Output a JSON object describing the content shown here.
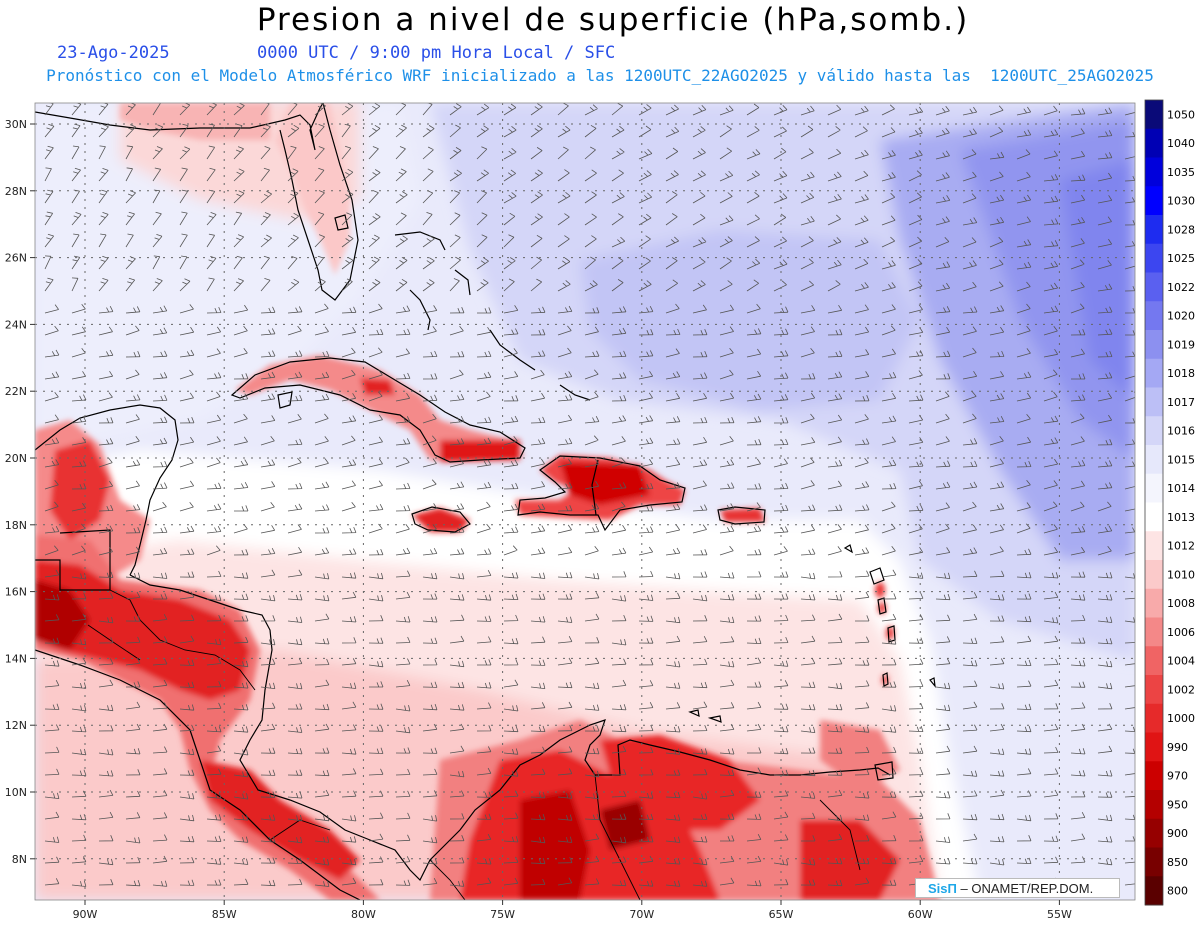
{
  "title": "Presion a nivel de superficie (hPa,somb.)",
  "date": "23-Ago-2025",
  "time_info": "0000 UTC / 9:00 pm Hora Local / SFC",
  "model_info": "Pronóstico con el Modelo Atmosférico WRF inicializado a las 1200UTC_22AGO2025 y válido hasta las  1200UTC_25AGO2025",
  "credit": {
    "logo": "SisΠ",
    "text": " – ONAMET/REP.DOM."
  },
  "lat_labels": [
    "30N",
    "28N",
    "26N",
    "24N",
    "22N",
    "20N",
    "18N",
    "16N",
    "14N",
    "12N",
    "10N",
    "8N"
  ],
  "lon_labels": [
    "90W",
    "85W",
    "80W",
    "75W",
    "70W",
    "65W",
    "60W",
    "55W"
  ],
  "colorbar": {
    "labels": [
      "1050",
      "1040",
      "1035",
      "1030",
      "1028",
      "1025",
      "1022",
      "1020",
      "1019",
      "1018",
      "1017",
      "1016",
      "1015",
      "1014",
      "1013",
      "1012",
      "1010",
      "1008",
      "1006",
      "1004",
      "1002",
      "1000",
      "990",
      "970",
      "950",
      "900",
      "850",
      "800"
    ],
    "colors": [
      "#0a0a78",
      "#0000b4",
      "#0000dc",
      "#0000ff",
      "#1e2cf0",
      "#3c46f0",
      "#5a60f0",
      "#7478f0",
      "#8c90f0",
      "#a4a8f4",
      "#bcbff6",
      "#d4d6f8",
      "#e6e8fb",
      "#f4f5fd",
      "#ffffff",
      "#fde4e4",
      "#fbcaca",
      "#f8aaaa",
      "#f48888",
      "#f06464",
      "#ec4444",
      "#e62a2a",
      "#e01414",
      "#cc0000",
      "#b40000",
      "#960000",
      "#780000",
      "#5a0000"
    ]
  }
}
